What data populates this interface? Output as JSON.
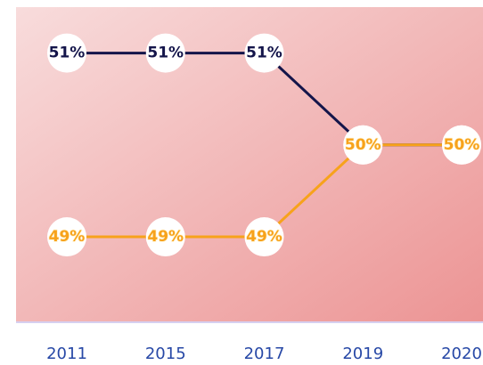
{
  "chart_data": {
    "type": "line",
    "categories": [
      "2011",
      "2015",
      "2017",
      "2019",
      "2020"
    ],
    "series": [
      {
        "color": "#14154a",
        "values": [
          51,
          51,
          51,
          50,
          50
        ],
        "value_labels": [
          "51%",
          "51%",
          "51%",
          "50%",
          "50%"
        ]
      },
      {
        "color": "#f7a21b",
        "values": [
          49,
          49,
          49,
          50,
          50
        ],
        "value_labels": [
          "49%",
          "49%",
          "49%",
          "50%",
          "50%"
        ]
      }
    ],
    "ylim": [
      48.07,
      51.5
    ]
  }
}
